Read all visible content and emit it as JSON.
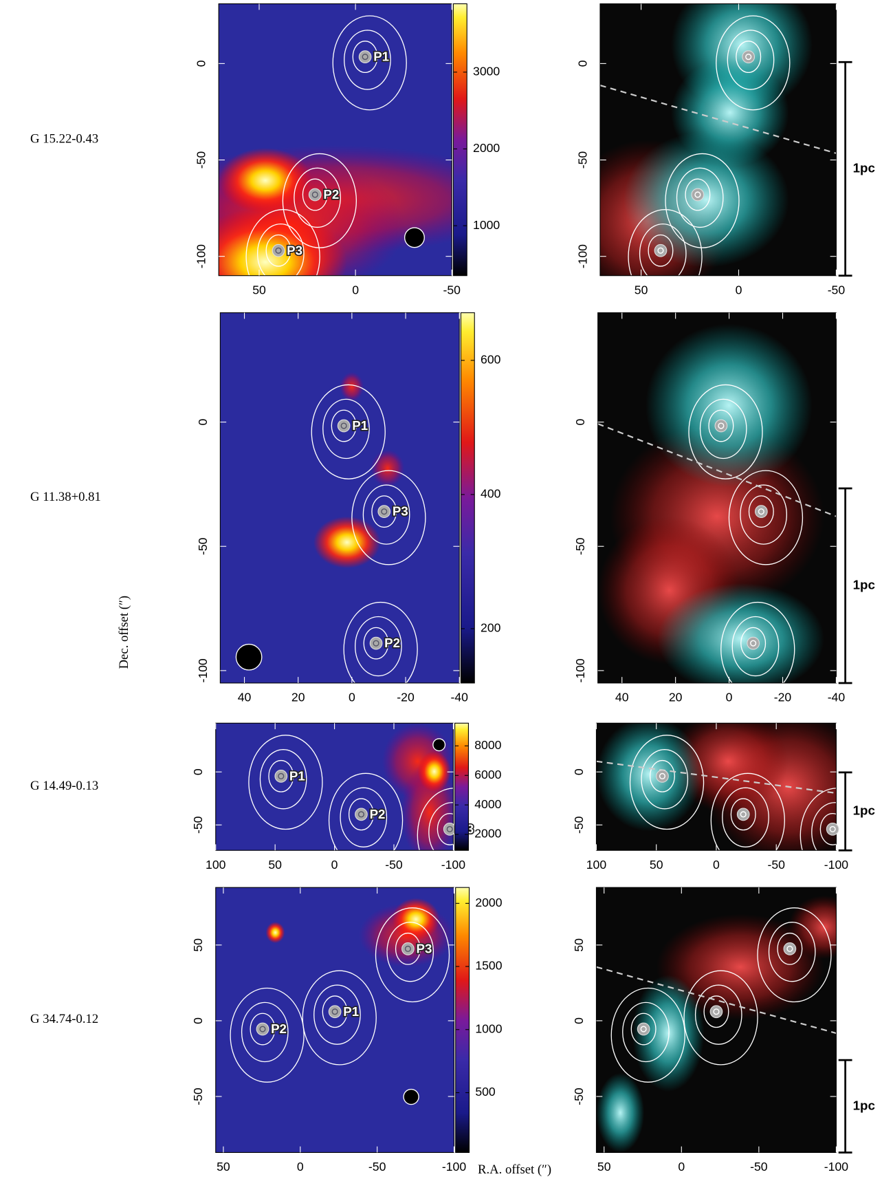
{
  "figure": {
    "xlabel": "R.A. offset (″)",
    "ylabel": "Dec. offset (″)",
    "scale_label": "1pc",
    "rows": [
      {
        "source": "G 15.22-0.43",
        "xlim": [
          71,
          -50
        ],
        "ylim": [
          -110,
          31
        ],
        "xticks": [
          50,
          0,
          -50
        ],
        "yticks": [
          -100,
          -50,
          0
        ],
        "cbar_lim": [
          350,
          3890
        ],
        "cbar_ticks": [
          1000,
          2000,
          3000
        ],
        "peaks": [
          {
            "label": "P1",
            "x": -5,
            "y": 3.5
          },
          {
            "label": "P2",
            "x": 21,
            "y": -68
          },
          {
            "label": "P3",
            "x": 40,
            "y": -97
          }
        ]
      },
      {
        "source": "G 11.38+0.81",
        "xlim": [
          49,
          -40
        ],
        "ylim": [
          -105,
          44
        ],
        "xticks": [
          40,
          20,
          0,
          -20,
          -40
        ],
        "yticks": [
          -100,
          -50,
          0
        ],
        "cbar_lim": [
          119,
          671
        ],
        "cbar_ticks": [
          200,
          400,
          600
        ],
        "peaks": [
          {
            "label": "P1",
            "x": 3,
            "y": -1.5
          },
          {
            "label": "P2",
            "x": -9,
            "y": -89
          },
          {
            "label": "P3",
            "x": -12,
            "y": -36
          }
        ]
      },
      {
        "source": "G 14.49-0.13",
        "xlim": [
          100,
          -100
        ],
        "ylim": [
          -74,
          46
        ],
        "xticks": [
          100,
          50,
          0,
          -50,
          -100
        ],
        "yticks": [
          -50,
          0
        ],
        "cbar_lim": [
          920,
          9540
        ],
        "cbar_ticks": [
          2000,
          4000,
          6000,
          8000
        ],
        "peaks": [
          {
            "label": "P1",
            "x": 45,
            "y": -4
          },
          {
            "label": "P2",
            "x": -22.5,
            "y": -40
          },
          {
            "label": "P3",
            "x": -97,
            "y": -54
          }
        ]
      },
      {
        "source": "G 34.74-0.12",
        "xlim": [
          55,
          -100
        ],
        "ylim": [
          -87,
          88
        ],
        "xticks": [
          50,
          0,
          -50,
          -100
        ],
        "yticks": [
          -50,
          0,
          50
        ],
        "cbar_lim": [
          26,
          2126
        ],
        "cbar_ticks": [
          500,
          1000,
          1500,
          2000
        ],
        "peaks": [
          {
            "label": "P1",
            "x": -22.5,
            "y": 6
          },
          {
            "label": "P2",
            "x": 24.5,
            "y": -5.5
          },
          {
            "label": "P3",
            "x": -70,
            "y": 47.5
          }
        ]
      }
    ]
  }
}
